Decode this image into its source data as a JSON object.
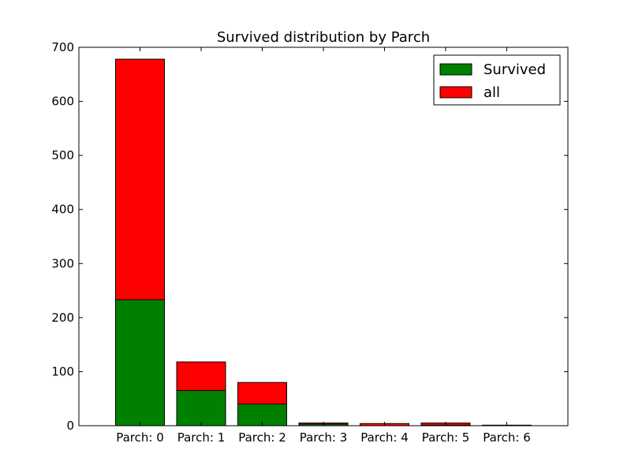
{
  "chart_data": {
    "type": "bar",
    "stacked": true,
    "title": "Survived distribution by Parch",
    "xlabel": "",
    "ylabel": "",
    "categories": [
      "Parch: 0",
      "Parch: 1",
      "Parch: 2",
      "Parch: 3",
      "Parch: 4",
      "Parch: 5",
      "Parch: 6"
    ],
    "series": [
      {
        "name": "Survived",
        "color": "#008000",
        "values": [
          233,
          65,
          40,
          3,
          0,
          1,
          0
        ]
      },
      {
        "name": "all",
        "color": "#ff0000",
        "values": [
          678,
          118,
          80,
          5,
          4,
          5,
          1
        ]
      }
    ],
    "ylim": [
      0,
      700
    ],
    "yticks": [
      0,
      100,
      200,
      300,
      400,
      500,
      600,
      700
    ],
    "grid": false,
    "legend": "top-right"
  }
}
